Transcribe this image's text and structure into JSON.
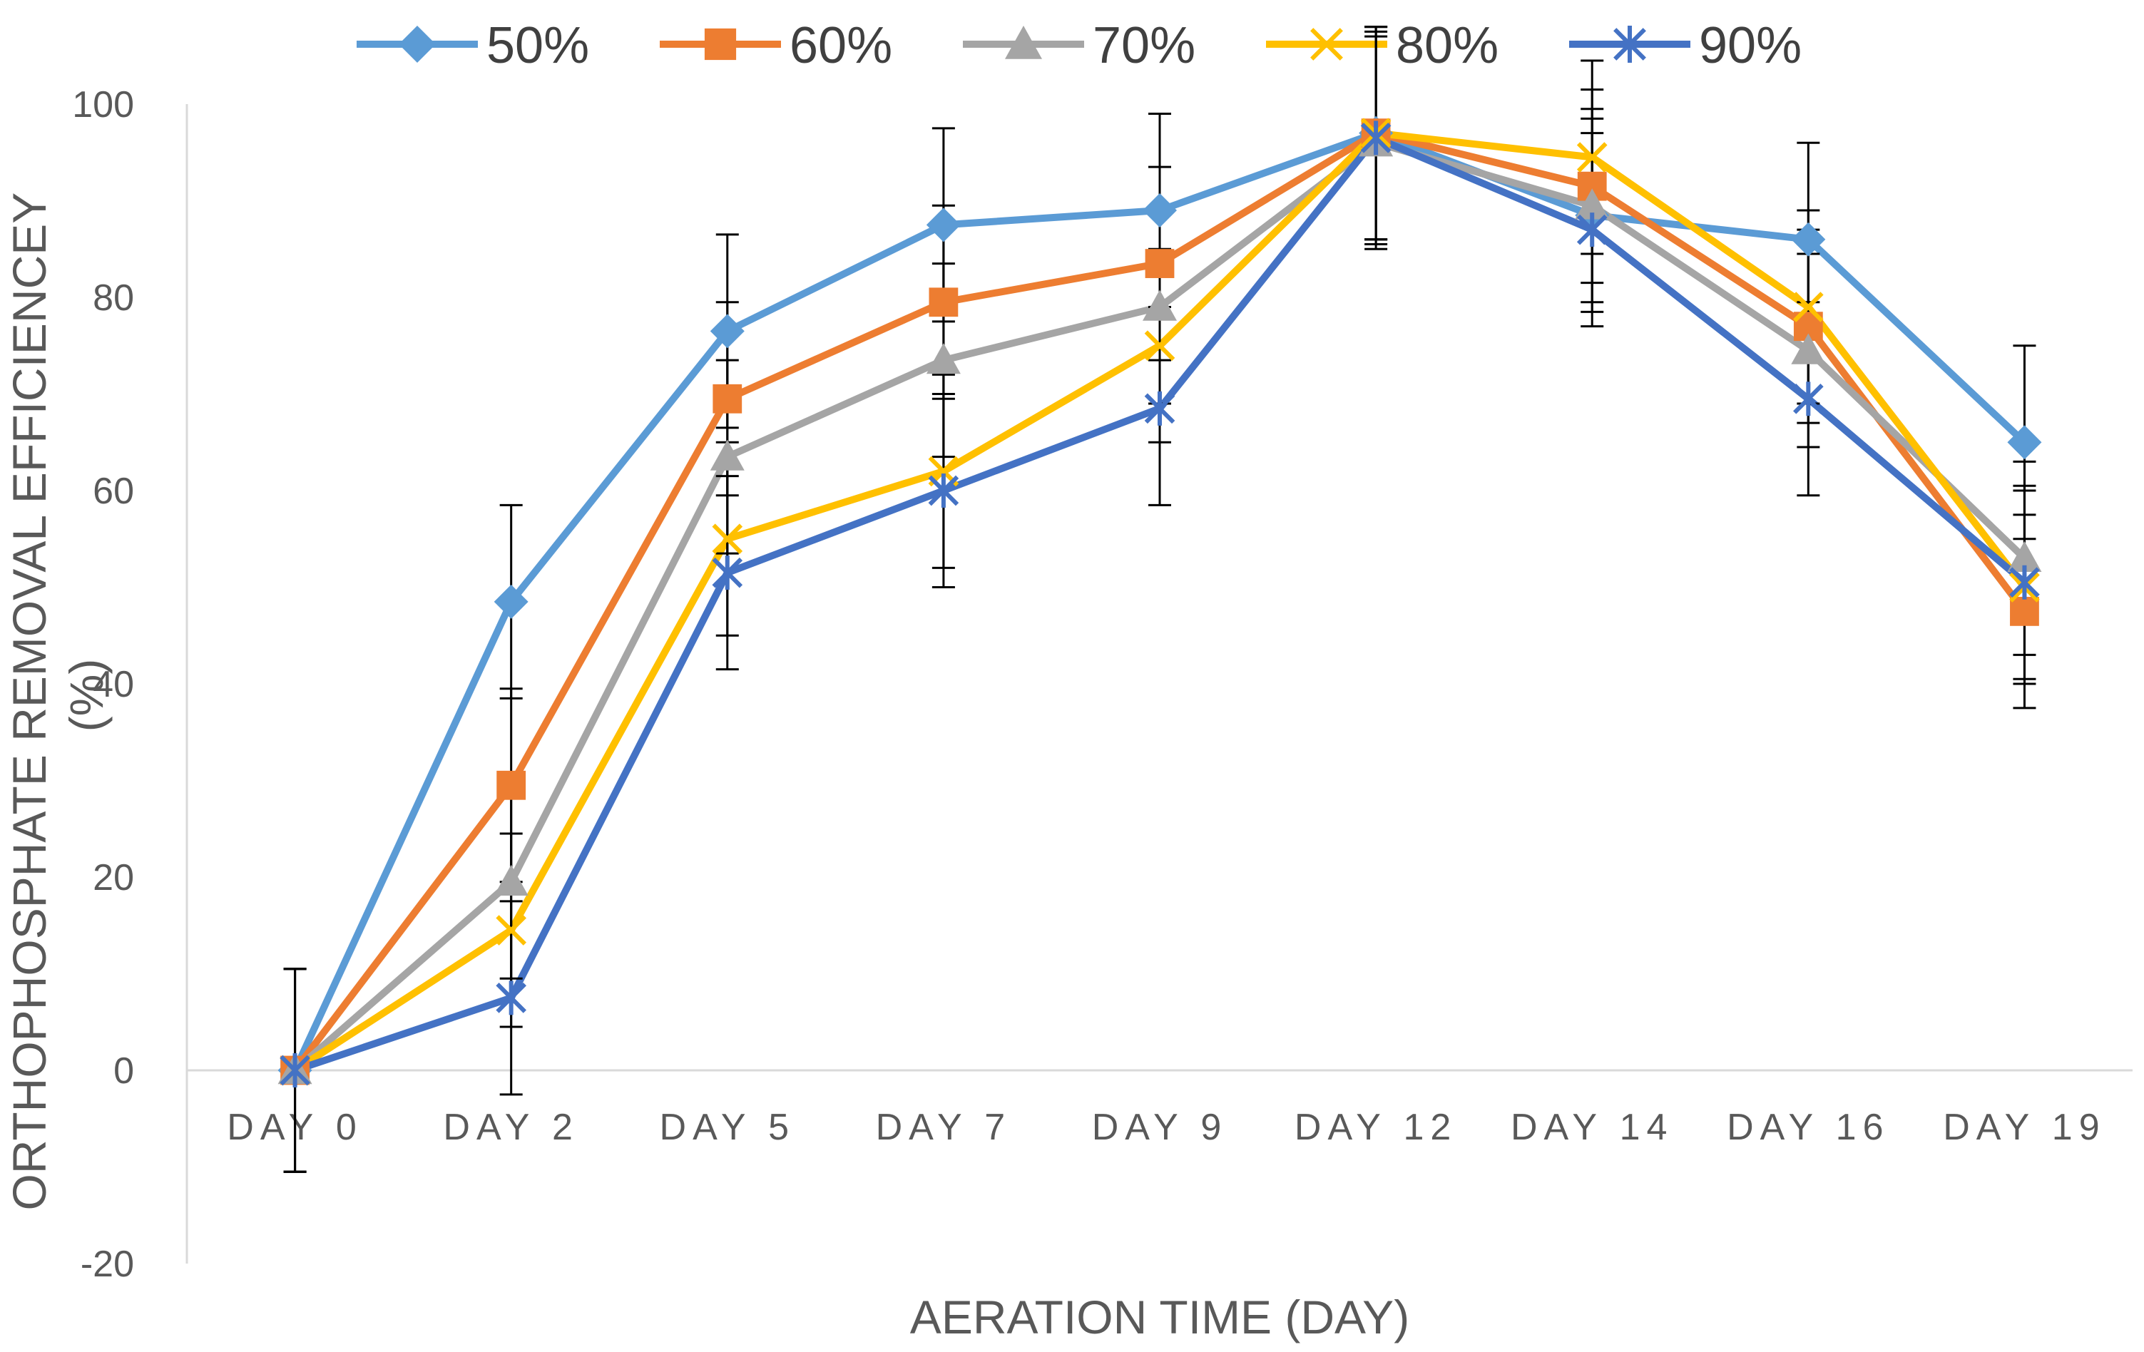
{
  "chart_data": {
    "type": "line",
    "title": "",
    "xlabel": "AERATION TIME (DAY)",
    "ylabel_lines": [
      "ORTHOPHOSPHATE REMOVAL EFFICIENCEY",
      "(%)"
    ],
    "ylim": [
      -20,
      100
    ],
    "yticks": [
      -20,
      0,
      20,
      40,
      60,
      80,
      100
    ],
    "grid": false,
    "legend_position": "top",
    "categories": [
      "DAY 0",
      "DAY 2",
      "DAY 5",
      "DAY 7",
      "DAY 9",
      "DAY 12",
      "DAY 14",
      "DAY 16",
      "DAY 19"
    ],
    "series": [
      {
        "name": "50%",
        "color": "#5B9BD5",
        "marker": "diamond",
        "values": [
          0,
          48.5,
          76.5,
          87.5,
          89,
          97,
          88.5,
          86,
          65
        ],
        "errors": [
          10.5,
          10,
          10,
          10,
          10,
          11,
          10,
          10,
          10
        ]
      },
      {
        "name": "60%",
        "color": "#ED7D31",
        "marker": "square",
        "values": [
          0,
          29.5,
          69.5,
          79.5,
          83.5,
          97,
          91.5,
          77,
          47.5
        ],
        "errors": [
          10.5,
          10,
          10,
          10,
          10,
          11,
          10,
          10,
          10
        ]
      },
      {
        "name": "70%",
        "color": "#A5A5A5",
        "marker": "triangle",
        "values": [
          0,
          19.5,
          63.5,
          73.5,
          79,
          96,
          89.5,
          74.5,
          53
        ],
        "errors": [
          10.5,
          10,
          10,
          10,
          10,
          11,
          10,
          10,
          10
        ]
      },
      {
        "name": "80%",
        "color": "#FFC000",
        "marker": "x",
        "values": [
          0,
          14.5,
          55,
          62,
          75,
          97,
          94.5,
          79,
          50
        ],
        "errors": [
          10.5,
          10,
          10,
          10,
          10,
          11,
          10,
          10,
          10
        ]
      },
      {
        "name": "90%",
        "color": "#4472C4",
        "marker": "star",
        "values": [
          0,
          7.5,
          51.5,
          60,
          68.5,
          96.5,
          87,
          69.5,
          50.5
        ],
        "errors": [
          10.5,
          10,
          10,
          10,
          10,
          11,
          10,
          10,
          10
        ]
      }
    ]
  }
}
